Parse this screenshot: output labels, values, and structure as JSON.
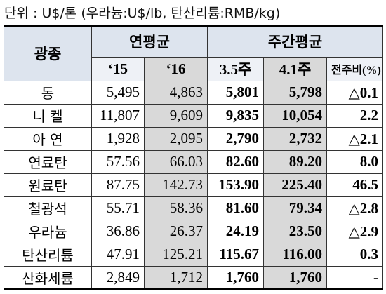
{
  "unit_note": "단위 : U$/톤 (우라늄:U$/lb, 탄산리튬:RMB/kg)",
  "table": {
    "header": {
      "mineral": "광종",
      "annual_avg": "연평균",
      "weekly_avg": "주간평균",
      "columns": [
        "‘15",
        "‘16",
        "3.5주",
        "4.1주",
        "전주비(%)"
      ]
    },
    "rows": [
      [
        "동",
        "5,495",
        "4,863",
        "5,801",
        "5,798",
        "△0.1"
      ],
      [
        "니 켈",
        "11,807",
        "9,609",
        "9,835",
        "10,054",
        "2.2"
      ],
      [
        "아 연",
        "1,928",
        "2,095",
        "2,790",
        "2,732",
        "△2.1"
      ],
      [
        "연료탄",
        "57.56",
        "66.03",
        "82.60",
        "89.20",
        "8.0"
      ],
      [
        "원료탄",
        "87.75",
        "142.73",
        "153.90",
        "225.40",
        "46.5"
      ],
      [
        "철광석",
        "55.71",
        "58.36",
        "81.60",
        "79.34",
        "△2.8"
      ],
      [
        "우라늄",
        "36.86",
        "26.37",
        "24.19",
        "23.50",
        "△2.9"
      ],
      [
        "탄산리튬",
        "47.91",
        "125.21",
        "115.67",
        "116.00",
        "0.3"
      ],
      [
        "산화세륨",
        "2,849",
        "1,712",
        "1,760",
        "1,760",
        "-"
      ]
    ]
  }
}
